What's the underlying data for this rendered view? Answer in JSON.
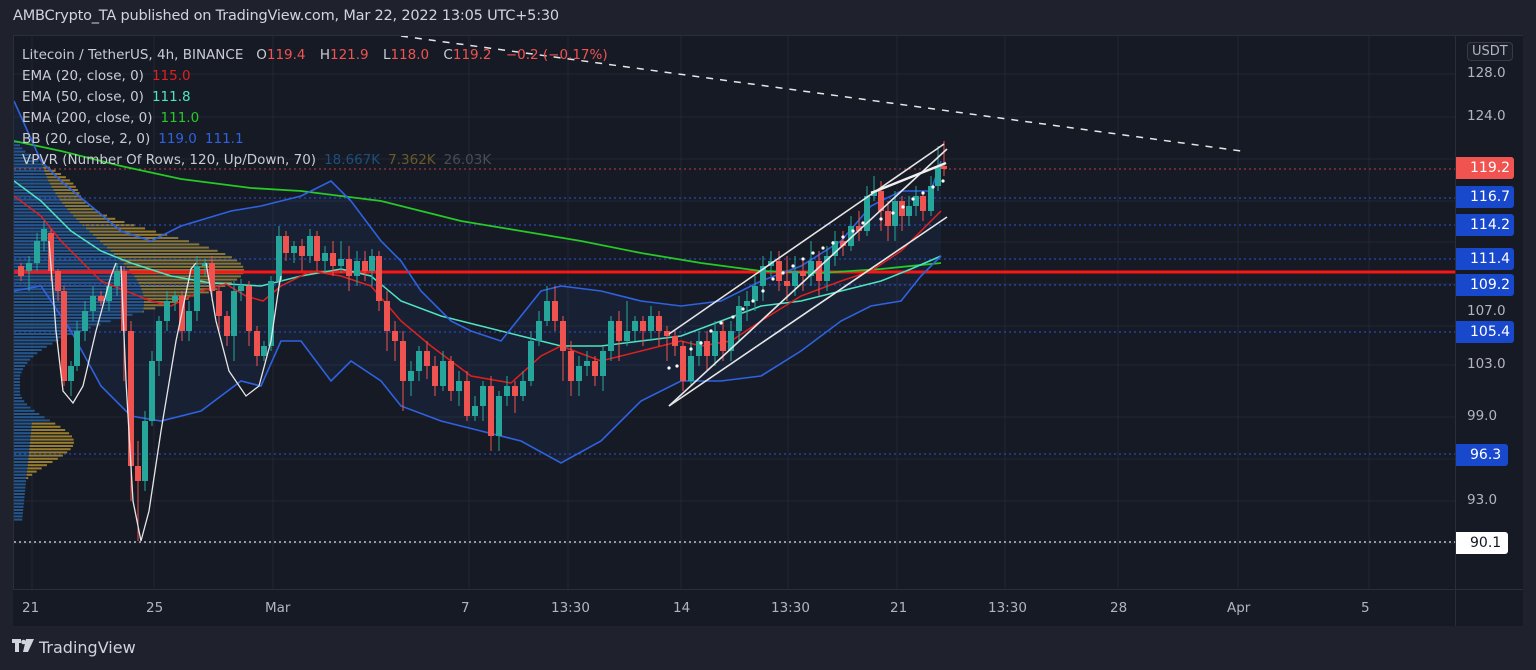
{
  "header": {
    "published": "AMBCrypto_TA published on TradingView.com, Mar 22, 2022 13:05 UTC+5:30"
  },
  "legend": {
    "symbol": "Litecoin / TetherUS, 4h, BINANCE",
    "ohlc": {
      "o_label": "O",
      "o": "119.4",
      "h_label": "H",
      "h": "121.9",
      "l_label": "L",
      "l": "118.0",
      "c_label": "C",
      "c": "119.2",
      "change": "−0.2 (−0.17%)"
    },
    "indicators": [
      {
        "label": "EMA (20, close, 0)",
        "values": [
          "115.0"
        ],
        "color": "#e0201f"
      },
      {
        "label": "EMA (50, close, 0)",
        "values": [
          "111.8"
        ],
        "color": "#4fe3c1"
      },
      {
        "label": "EMA (200, close, 0)",
        "values": [
          "111.0"
        ],
        "color": "#26c926"
      },
      {
        "label": "BB (20, close, 2, 0)",
        "values": [
          "119.0",
          "111.1"
        ],
        "color": "#2e62e0"
      },
      {
        "label": "VPVR (Number Of Rows, 120, Up/Down, 70)",
        "values": [
          "18.667K",
          "7.362K",
          "26.03K"
        ],
        "colors": [
          "#1e4f7a",
          "#6b5a2a",
          "#4a4d56"
        ]
      }
    ]
  },
  "price_axis": {
    "currency": "USDT",
    "ticks": [
      "128.0",
      "124.0",
      "107.0",
      "103.0",
      "99.0",
      "93.0"
    ],
    "tags": [
      {
        "value": "119.2",
        "color": "#f05350",
        "type": "last-price"
      },
      {
        "value": "116.7",
        "color": "#1848cc",
        "type": "level"
      },
      {
        "value": "114.2",
        "color": "#1848cc",
        "type": "level"
      },
      {
        "value": "111.4",
        "color": "#1848cc",
        "type": "level"
      },
      {
        "value": "109.2",
        "color": "#1848cc",
        "type": "level"
      },
      {
        "value": "105.4",
        "color": "#1848cc",
        "type": "level"
      },
      {
        "value": "96.3",
        "color": "#1848cc",
        "type": "level"
      },
      {
        "value": "90.1",
        "color": "#ffffff",
        "type": "low-marker"
      }
    ]
  },
  "time_axis": {
    "ticks": [
      "21",
      "25",
      "Mar",
      "7",
      "13:30",
      "14",
      "13:30",
      "21",
      "13:30",
      "28",
      "Apr",
      "5"
    ]
  },
  "branding": {
    "logo_mark": "TV",
    "logo_text": "TradingView"
  },
  "colors": {
    "up": "#26a69a",
    "down": "#ef5350",
    "support_line": "#ff1a1a",
    "level_lines": "#2849b8",
    "channel": "#e6e6e6"
  },
  "chart_data": {
    "type": "candlestick",
    "title": "Litecoin / TetherUS, 4h, BINANCE",
    "xlabel": "",
    "ylabel": "USDT",
    "ylim": [
      89,
      130
    ],
    "x_ticks": [
      "21",
      "25",
      "Mar",
      "7",
      "13:30",
      "14",
      "13:30",
      "21",
      "13:30",
      "28",
      "Apr",
      "5"
    ],
    "last": {
      "open": 119.4,
      "high": 121.9,
      "low": 118.0,
      "close": 119.2,
      "change": -0.2,
      "change_pct": -0.17
    },
    "indicators": {
      "ema20": 115.0,
      "ema50": 111.8,
      "ema200": 111.0,
      "bb_upper": 119.0,
      "bb_lower": 111.1
    },
    "horizontal_levels": [
      116.7,
      114.2,
      111.4,
      109.2,
      105.4,
      96.3,
      90.1
    ],
    "key_support_resistance": 110.5,
    "annotations": [
      "Ascending channel (white parallel lines) from ~Mar 13 to Mar 22",
      "Dashed descending trendline from top-left toward ~Apr 1 at ~122",
      "White U-shaped curves marking rounded bottoms in late Feb",
      "Red horizontal line near 110.5"
    ],
    "vpvr": {
      "up_volume": "18.667K",
      "down_volume": "7.362K",
      "total": "26.03K"
    }
  }
}
